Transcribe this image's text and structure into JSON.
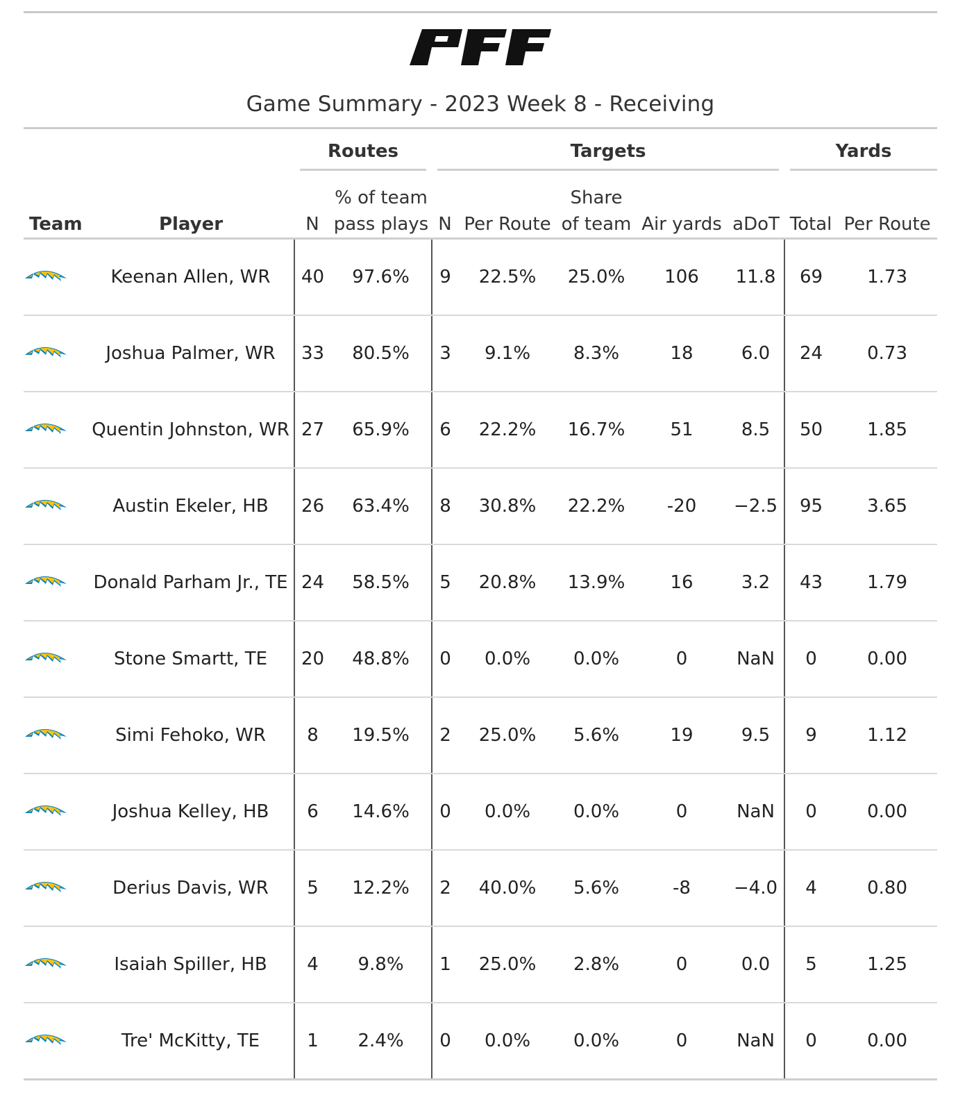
{
  "brand": {
    "logo_text": "PFF",
    "accent_blue": "#0080c6",
    "bolt_yellow": "#ffc20e"
  },
  "title": "Game Summary - 2023 Week 8 - Receiving",
  "spanners": {
    "routes": "Routes",
    "targets": "Targets",
    "yards": "Yards"
  },
  "columns": {
    "team": "Team",
    "player": "Player",
    "routes_n": "N",
    "routes_pct": [
      "% of team",
      "pass plays"
    ],
    "targets_n": "N",
    "targets_per_route": "Per Route",
    "targets_share": [
      "Share",
      "of team"
    ],
    "air_yards": "Air yards",
    "adot": "aDoT",
    "yards_total": "Total",
    "yards_per_route": "Per Route"
  },
  "rows": [
    {
      "team_icon": "chargers-bolt-icon",
      "player": "Keenan Allen, WR",
      "routes_n": "40",
      "routes_pct": "97.6%",
      "targets_n": "9",
      "targets_per_route": "22.5%",
      "targets_share": "25.0%",
      "air_yards": "106",
      "adot": "11.8",
      "yards_total": "69",
      "yards_per_route": "1.73"
    },
    {
      "team_icon": "chargers-bolt-icon",
      "player": "Joshua Palmer, WR",
      "routes_n": "33",
      "routes_pct": "80.5%",
      "targets_n": "3",
      "targets_per_route": "9.1%",
      "targets_share": "8.3%",
      "air_yards": "18",
      "adot": "6.0",
      "yards_total": "24",
      "yards_per_route": "0.73"
    },
    {
      "team_icon": "chargers-bolt-icon",
      "player": "Quentin Johnston, WR",
      "routes_n": "27",
      "routes_pct": "65.9%",
      "targets_n": "6",
      "targets_per_route": "22.2%",
      "targets_share": "16.7%",
      "air_yards": "51",
      "adot": "8.5",
      "yards_total": "50",
      "yards_per_route": "1.85"
    },
    {
      "team_icon": "chargers-bolt-icon",
      "player": "Austin Ekeler, HB",
      "routes_n": "26",
      "routes_pct": "63.4%",
      "targets_n": "8",
      "targets_per_route": "30.8%",
      "targets_share": "22.2%",
      "air_yards": "-20",
      "adot": "−2.5",
      "yards_total": "95",
      "yards_per_route": "3.65"
    },
    {
      "team_icon": "chargers-bolt-icon",
      "player": "Donald Parham Jr., TE",
      "routes_n": "24",
      "routes_pct": "58.5%",
      "targets_n": "5",
      "targets_per_route": "20.8%",
      "targets_share": "13.9%",
      "air_yards": "16",
      "adot": "3.2",
      "yards_total": "43",
      "yards_per_route": "1.79"
    },
    {
      "team_icon": "chargers-bolt-icon",
      "player": "Stone Smartt, TE",
      "routes_n": "20",
      "routes_pct": "48.8%",
      "targets_n": "0",
      "targets_per_route": "0.0%",
      "targets_share": "0.0%",
      "air_yards": "0",
      "adot": "NaN",
      "yards_total": "0",
      "yards_per_route": "0.00"
    },
    {
      "team_icon": "chargers-bolt-icon",
      "player": "Simi Fehoko, WR",
      "routes_n": "8",
      "routes_pct": "19.5%",
      "targets_n": "2",
      "targets_per_route": "25.0%",
      "targets_share": "5.6%",
      "air_yards": "19",
      "adot": "9.5",
      "yards_total": "9",
      "yards_per_route": "1.12"
    },
    {
      "team_icon": "chargers-bolt-icon",
      "player": "Joshua Kelley, HB",
      "routes_n": "6",
      "routes_pct": "14.6%",
      "targets_n": "0",
      "targets_per_route": "0.0%",
      "targets_share": "0.0%",
      "air_yards": "0",
      "adot": "NaN",
      "yards_total": "0",
      "yards_per_route": "0.00"
    },
    {
      "team_icon": "chargers-bolt-icon",
      "player": "Derius Davis, WR",
      "routes_n": "5",
      "routes_pct": "12.2%",
      "targets_n": "2",
      "targets_per_route": "40.0%",
      "targets_share": "5.6%",
      "air_yards": "-8",
      "adot": "−4.0",
      "yards_total": "4",
      "yards_per_route": "0.80"
    },
    {
      "team_icon": "chargers-bolt-icon",
      "player": "Isaiah Spiller, HB",
      "routes_n": "4",
      "routes_pct": "9.8%",
      "targets_n": "1",
      "targets_per_route": "25.0%",
      "targets_share": "2.8%",
      "air_yards": "0",
      "adot": "0.0",
      "yards_total": "5",
      "yards_per_route": "1.25"
    },
    {
      "team_icon": "chargers-bolt-icon",
      "player": "Tre' McKitty, TE",
      "routes_n": "1",
      "routes_pct": "2.4%",
      "targets_n": "0",
      "targets_per_route": "0.0%",
      "targets_share": "0.0%",
      "air_yards": "0",
      "adot": "NaN",
      "yards_total": "0",
      "yards_per_route": "0.00"
    }
  ]
}
